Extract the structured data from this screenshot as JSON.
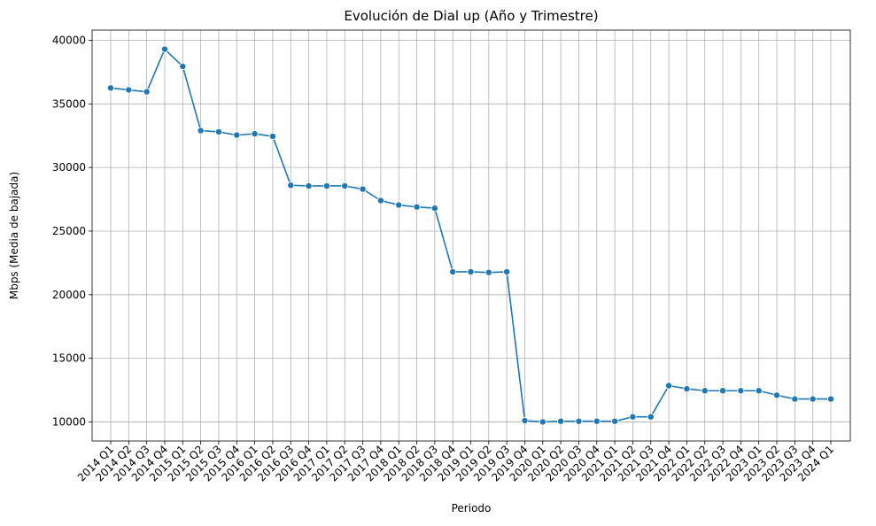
{
  "chart_data": {
    "type": "line",
    "title": "Evolución de Dial up (Año y Trimestre)",
    "xlabel": "Periodo",
    "ylabel": "Mbps (Media de bajada)",
    "x": [
      "2014 Q1",
      "2014 Q2",
      "2014 Q3",
      "2014 Q4",
      "2015 Q1",
      "2015 Q2",
      "2015 Q3",
      "2015 Q4",
      "2016 Q1",
      "2016 Q2",
      "2016 Q3",
      "2016 Q4",
      "2017 Q1",
      "2017 Q2",
      "2017 Q3",
      "2017 Q4",
      "2018 Q1",
      "2018 Q2",
      "2018 Q3",
      "2018 Q4",
      "2019 Q1",
      "2019 Q2",
      "2019 Q3",
      "2019 Q4",
      "2020 Q1",
      "2020 Q2",
      "2020 Q3",
      "2020 Q4",
      "2021 Q1",
      "2021 Q2",
      "2021 Q3",
      "2021 Q4",
      "2022 Q1",
      "2022 Q2",
      "2022 Q3",
      "2022 Q4",
      "2023 Q1",
      "2023 Q2",
      "2023 Q3",
      "2023 Q4",
      "2024 Q1"
    ],
    "series": [
      {
        "values": [
          36250,
          36100,
          35950,
          39300,
          37950,
          32900,
          32800,
          32550,
          32650,
          32450,
          28600,
          28550,
          28550,
          28550,
          28300,
          27400,
          27050,
          26900,
          26800,
          21800,
          21800,
          21750,
          21800,
          10100,
          10000,
          10050,
          10050,
          10050,
          10050,
          10400,
          10400,
          12850,
          12600,
          12450,
          12450,
          12450,
          12450,
          12100,
          11800,
          11800,
          11800
        ]
      }
    ],
    "ylim": [
      8500,
      40800
    ],
    "yticks": [
      10000,
      15000,
      20000,
      25000,
      30000,
      35000,
      40000
    ],
    "grid": true,
    "legend": "none",
    "color": "#1f77b4"
  }
}
